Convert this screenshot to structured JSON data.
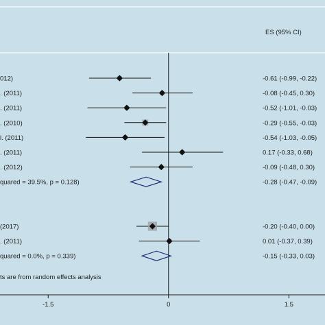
{
  "chart_data": {
    "type": "forest",
    "title": "",
    "xlabel": "",
    "ylabel": "",
    "header_es": "ES (95% CI)",
    "xlim": [
      -2.1,
      1.95
    ],
    "xticks": [
      -1.5,
      0,
      1.5
    ],
    "xtick_labels": [
      "-1.5",
      "0",
      "1.5"
    ],
    "footnote": "ts are from random effects analysis",
    "rows": [
      {
        "kind": "study",
        "label": "012)",
        "es": -0.61,
        "lo": -0.99,
        "hi": -0.22,
        "ci_text": "-0.61 (-0.99, -0.22)"
      },
      {
        "kind": "study",
        "label": ". (2011)",
        "es": -0.08,
        "lo": -0.45,
        "hi": 0.3,
        "ci_text": "-0.08 (-0.45, 0.30)"
      },
      {
        "kind": "study",
        "label": ". (2011)",
        "es": -0.52,
        "lo": -1.01,
        "hi": -0.03,
        "ci_text": "-0.52 (-1.01, -0.03)"
      },
      {
        "kind": "study",
        "label": ". (2010)",
        "es": -0.29,
        "lo": -0.55,
        "hi": -0.03,
        "ci_text": "-0.29 (-0.55, -0.03)"
      },
      {
        "kind": "study",
        "label": "l. (2011)",
        "es": -0.54,
        "lo": -1.03,
        "hi": -0.05,
        "ci_text": "-0.54 (-1.03, -0.05)"
      },
      {
        "kind": "study",
        "label": ". (2011)",
        "es": 0.17,
        "lo": -0.33,
        "hi": 0.68,
        "ci_text": "0.17 (-0.33, 0.68)"
      },
      {
        "kind": "study",
        "label": ". (2012)",
        "es": -0.09,
        "lo": -0.48,
        "hi": 0.3,
        "ci_text": "-0.09 (-0.48, 0.30)"
      },
      {
        "kind": "pooled",
        "label": "quared = 39.5%, p = 0.128)",
        "es": -0.28,
        "lo": -0.47,
        "hi": -0.09,
        "ci_text": "-0.28 (-0.47, -0.09)"
      },
      {
        "kind": "gap"
      },
      {
        "kind": "gap"
      },
      {
        "kind": "study",
        "label": " (2017)",
        "es": -0.2,
        "lo": -0.4,
        "hi": 0.0,
        "ci_text": "-0.20 (-0.40, 0.00)"
      },
      {
        "kind": "study",
        "label": ". (2011)",
        "es": 0.01,
        "lo": -0.37,
        "hi": 0.39,
        "ci_text": "0.01 (-0.37, 0.39)"
      },
      {
        "kind": "pooled",
        "label": "quared = 0.0%, p = 0.339)",
        "es": -0.15,
        "lo": -0.33,
        "hi": 0.03,
        "ci_text": "-0.15 (-0.33, 0.03)"
      }
    ],
    "colors": {
      "background": "#c9dfe9",
      "panel": "#c9dfe9",
      "rule": "#f2f7fa",
      "axis": "#1a1a1a",
      "marker": "#111111",
      "weight_box": "#9fa7ab",
      "diamond": "#1f2f7a"
    }
  }
}
